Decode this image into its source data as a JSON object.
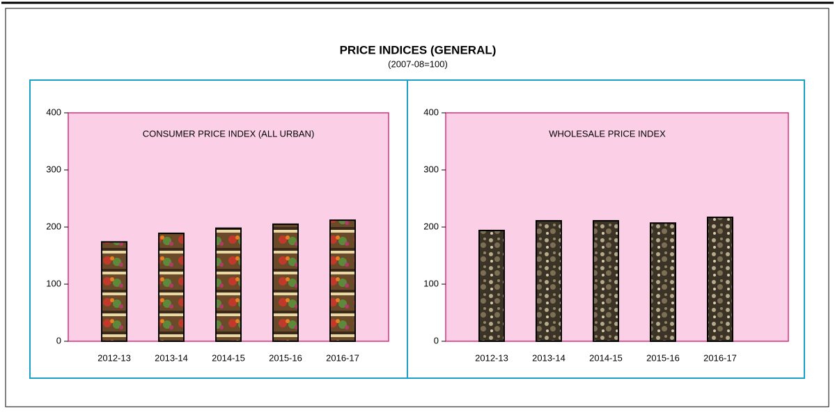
{
  "title": "PRICE INDICES (GENERAL)",
  "subtitle": "(2007-08=100)",
  "chart_data": [
    {
      "type": "bar",
      "title": "CONSUMER PRICE INDEX (ALL URBAN)",
      "categories": [
        "2012-13",
        "2013-14",
        "2014-15",
        "2015-16",
        "2016-17"
      ],
      "values": [
        174,
        189,
        198,
        205,
        212
      ],
      "ylim": [
        0,
        400
      ],
      "yticks": [
        0,
        100,
        200,
        300,
        400
      ]
    },
    {
      "type": "bar",
      "title": "WHOLESALE PRICE INDEX",
      "categories": [
        "2012-13",
        "2013-14",
        "2014-15",
        "2015-16",
        "2016-17"
      ],
      "values": [
        194,
        211,
        211,
        207,
        217
      ],
      "ylim": [
        0,
        400
      ],
      "yticks": [
        0,
        100,
        200,
        300,
        400
      ]
    }
  ]
}
